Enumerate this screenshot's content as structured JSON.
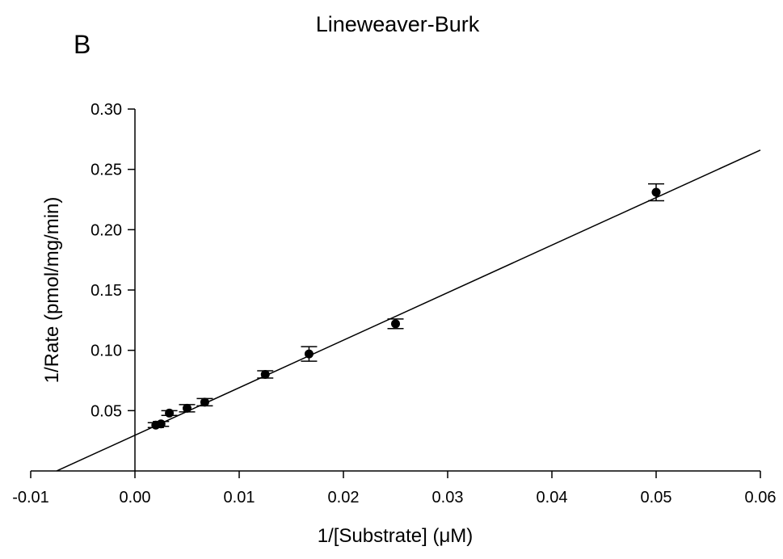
{
  "panel_letter": "B",
  "chart_data": {
    "type": "scatter",
    "title": "Lineweaver-Burk",
    "xlabel": "1/[Substrate] (μM)",
    "ylabel": "1/Rate (pmol/mg/min)",
    "xlim": [
      -0.01,
      0.06
    ],
    "ylim": [
      0.0,
      0.3
    ],
    "x_ticks": [
      "-0.01",
      "0.00",
      "0.01",
      "0.02",
      "0.03",
      "0.04",
      "0.05",
      "0.06"
    ],
    "y_ticks": [
      "0.05",
      "0.10",
      "0.15",
      "0.20",
      "0.25",
      "0.30"
    ],
    "grid": false,
    "legend": "none",
    "points": [
      {
        "x": 0.002,
        "y": 0.038,
        "err": 0.002
      },
      {
        "x": 0.0025,
        "y": 0.039,
        "err": 0.002
      },
      {
        "x": 0.0033,
        "y": 0.048,
        "err": 0.002
      },
      {
        "x": 0.005,
        "y": 0.052,
        "err": 0.003
      },
      {
        "x": 0.0067,
        "y": 0.057,
        "err": 0.003
      },
      {
        "x": 0.0125,
        "y": 0.08,
        "err": 0.003
      },
      {
        "x": 0.0167,
        "y": 0.097,
        "err": 0.006
      },
      {
        "x": 0.025,
        "y": 0.122,
        "err": 0.004
      },
      {
        "x": 0.05,
        "y": 0.231,
        "err": 0.007
      }
    ],
    "fit_line": {
      "slope": 3.94,
      "intercept": 0.0296,
      "x_start": -0.0075,
      "x_end": 0.06
    },
    "colors": {
      "marker": "#000000",
      "line": "#000000",
      "axis": "#000000"
    }
  }
}
